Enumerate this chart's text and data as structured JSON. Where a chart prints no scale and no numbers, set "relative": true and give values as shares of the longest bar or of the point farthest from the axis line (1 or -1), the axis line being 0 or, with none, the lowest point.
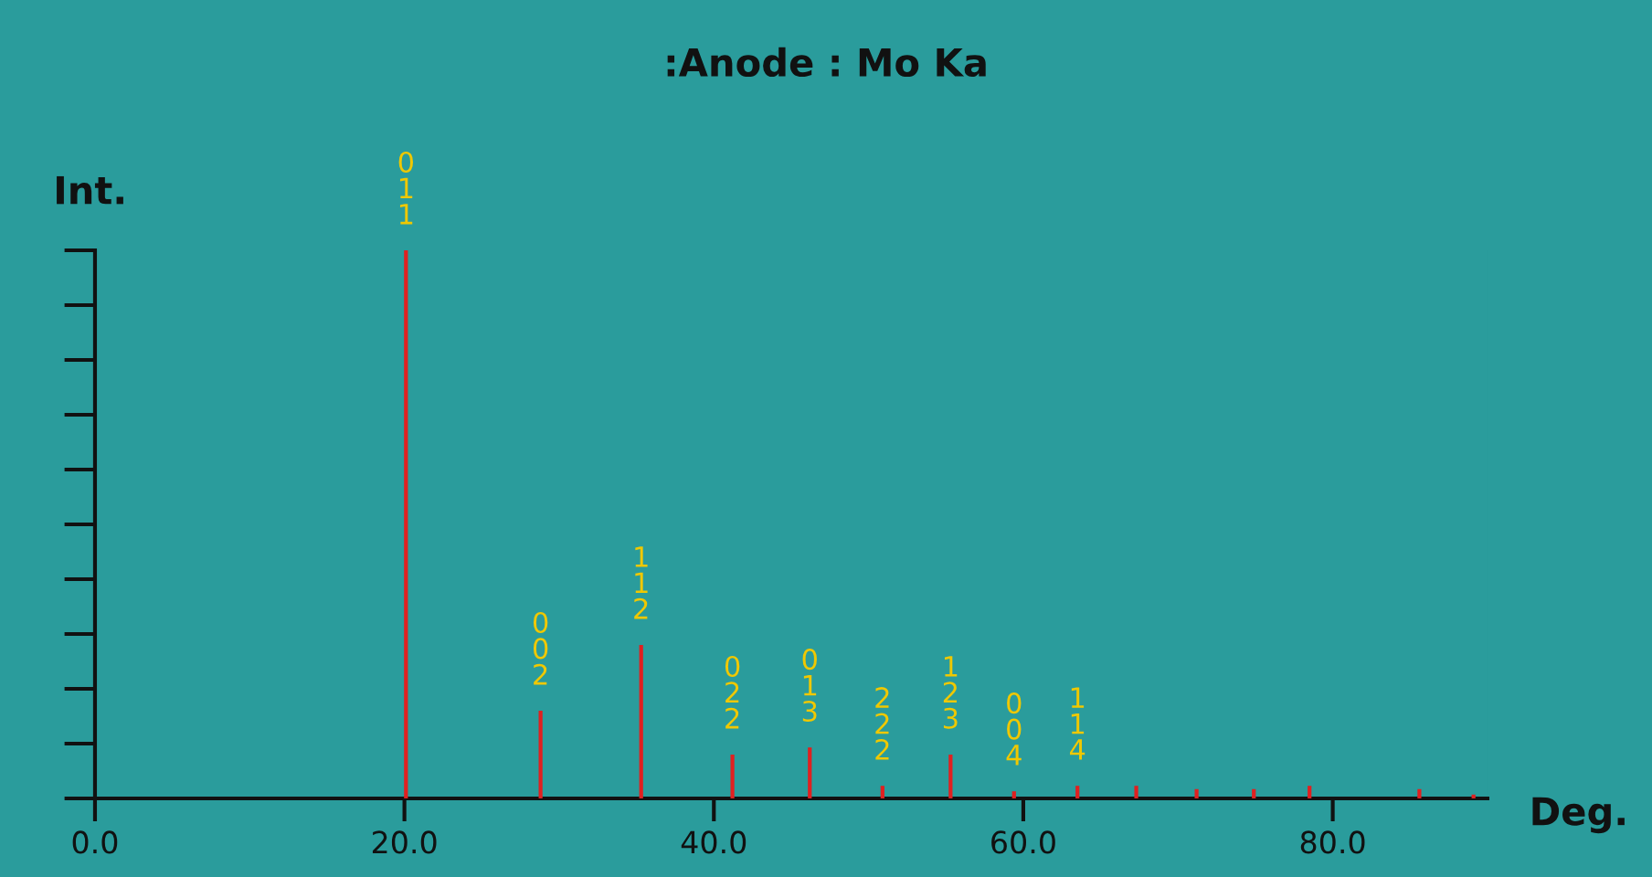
{
  "chart_data": {
    "type": "bar",
    "title": ":Anode : Mo Ka",
    "xlabel": "Deg.",
    "ylabel": "Int.",
    "relative": true,
    "x": [
      20.1,
      28.8,
      35.3,
      41.2,
      46.2,
      50.9,
      55.3,
      59.4,
      63.5,
      67.3,
      71.2,
      74.9,
      78.5,
      85.6,
      89.1
    ],
    "values": [
      1.0,
      0.16,
      0.28,
      0.08,
      0.093,
      0.023,
      0.08,
      0.013,
      0.023,
      0.023,
      0.017,
      0.017,
      0.023,
      0.017,
      0.007
    ],
    "color": "#e02020",
    "xlim": [
      0,
      90
    ],
    "xticks": [
      {
        "value": 0,
        "label": "0.0"
      },
      {
        "value": 20,
        "label": "20.0"
      },
      {
        "value": 40,
        "label": "40.0"
      },
      {
        "value": 60,
        "label": "60.0"
      },
      {
        "value": 80,
        "label": "80.0"
      }
    ],
    "annotations": [
      {
        "text": "011",
        "x": 20.1,
        "y": 1.0
      },
      {
        "text": "002",
        "x": 28.8,
        "y": 0.16
      },
      {
        "text": "112",
        "x": 35.3,
        "y": 0.28
      },
      {
        "text": "022",
        "x": 41.2,
        "y": 0.08
      },
      {
        "text": "013",
        "x": 46.2,
        "y": 0.093
      },
      {
        "text": "222",
        "x": 50.9,
        "y": 0.023
      },
      {
        "text": "123",
        "x": 55.3,
        "y": 0.08
      },
      {
        "text": "004",
        "x": 59.4,
        "y": 0.013
      },
      {
        "text": "114",
        "x": 63.5,
        "y": 0.023
      }
    ],
    "grid": false,
    "legend": false
  }
}
